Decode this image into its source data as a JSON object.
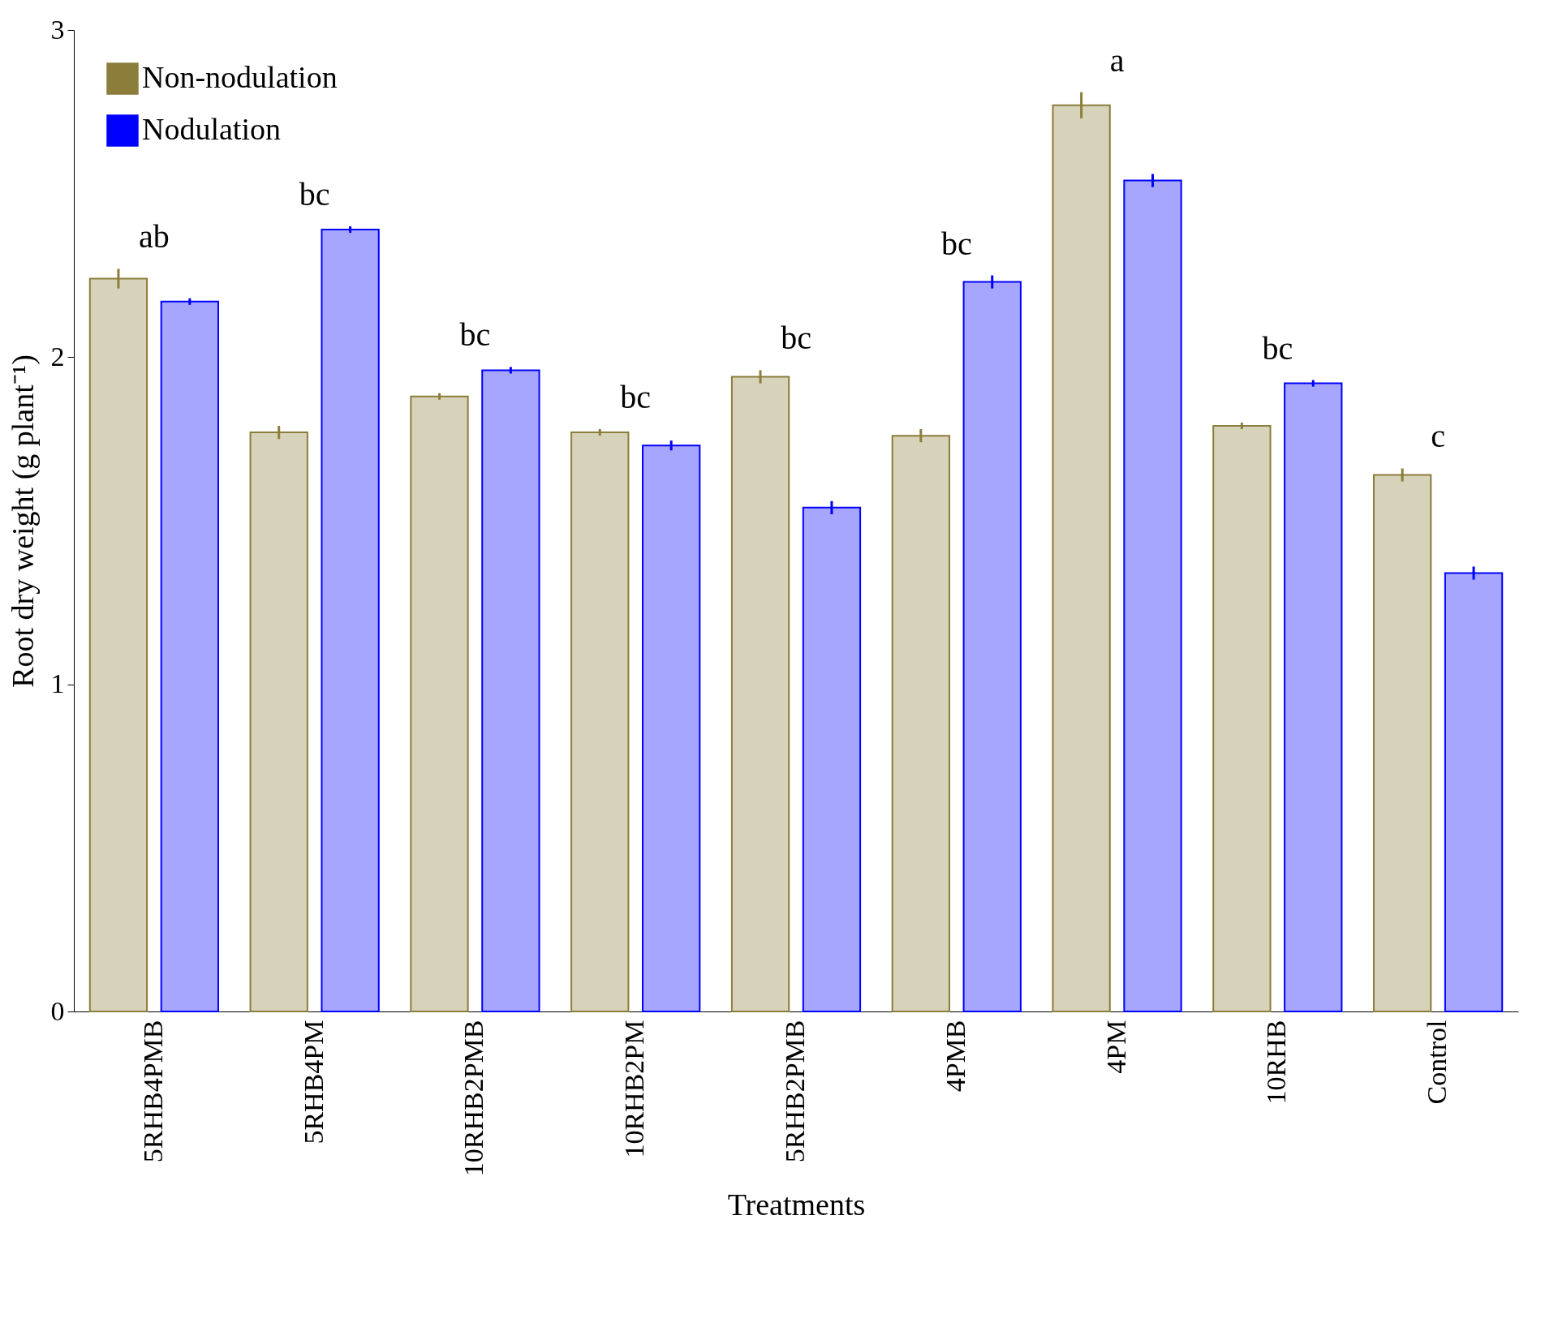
{
  "chart_data": {
    "type": "bar",
    "xlabel": "Treatments",
    "ylabel": "Root dry weight (g plant⁻¹)",
    "categories": [
      "5RHB4PMB",
      "5RHB4PM",
      "10RHB2PMB",
      "10RHB2PM",
      "5RHB2PMB",
      "4PMB",
      "4PM",
      "10RHB",
      "Control"
    ],
    "series": [
      {
        "name": "Non-nodulation",
        "color": "#8b7d3a",
        "values": [
          2.24,
          1.77,
          1.88,
          1.77,
          1.94,
          1.76,
          2.77,
          1.79,
          1.64
        ],
        "errors": [
          0.03,
          0.02,
          0.01,
          0.01,
          0.02,
          0.02,
          0.04,
          0.01,
          0.02
        ]
      },
      {
        "name": "Nodulation",
        "color": "#0000ff",
        "values": [
          2.17,
          2.39,
          1.96,
          1.73,
          1.54,
          2.23,
          2.54,
          1.92,
          1.34
        ],
        "errors": [
          0.01,
          0.01,
          0.01,
          0.015,
          0.02,
          0.02,
          0.02,
          0.01,
          0.02
        ]
      }
    ],
    "ylim": [
      0,
      3
    ],
    "yticks": [
      0,
      1,
      2,
      3
    ],
    "grid": false,
    "legend": "top left",
    "annotations": [
      "ab",
      "bc",
      "bc",
      "bc",
      "bc",
      "bc",
      "a",
      "bc",
      "c"
    ]
  }
}
